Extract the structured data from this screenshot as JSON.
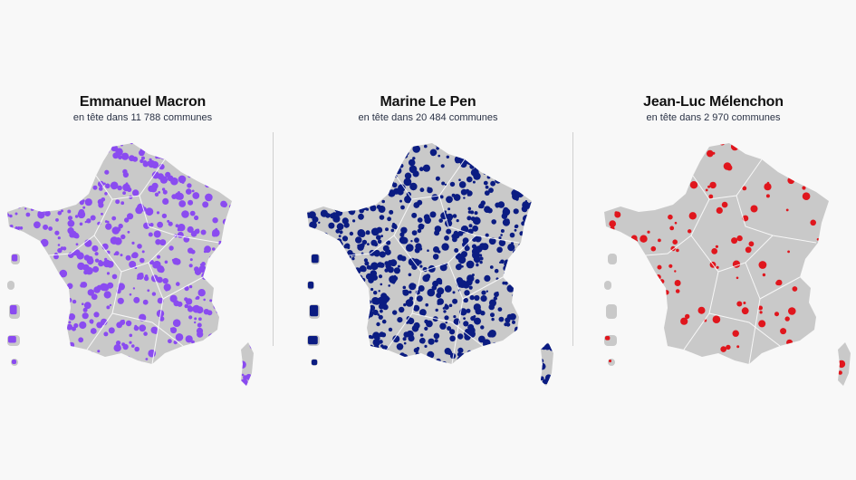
{
  "candidates": [
    {
      "name": "Emmanuel Macron",
      "subtitle_prefix": "en tête dans",
      "communes": "11 788",
      "subtitle_suffix": "communes",
      "color": "#8a4bf0",
      "density": 0.55
    },
    {
      "name": "Marine Le Pen",
      "subtitle_prefix": "en tête dans",
      "communes": "20 484",
      "subtitle_suffix": "communes",
      "color": "#0b1c82",
      "density": 0.78
    },
    {
      "name": "Jean-Luc Mélenchon",
      "subtitle_prefix": "en tête dans",
      "communes": "2 970",
      "subtitle_suffix": "communes",
      "color": "#e0161d",
      "density": 0.14
    }
  ],
  "base_color": "#c9c9c9",
  "border_color": "#ffffff"
}
